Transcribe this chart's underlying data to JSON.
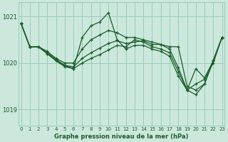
{
  "background_color": "#cce8dc",
  "grid_color": "#99ccbb",
  "line_color": "#1a5c2a",
  "marker_color": "#1a5c2a",
  "title": "Graphe pression niveau de la mer (hPa)",
  "ylim": [
    1018.65,
    1021.3
  ],
  "xlim": [
    -0.3,
    23.3
  ],
  "xticks": [
    0,
    1,
    2,
    3,
    4,
    5,
    6,
    7,
    8,
    9,
    10,
    11,
    12,
    13,
    14,
    15,
    16,
    17,
    18,
    19,
    20,
    21,
    22,
    23
  ],
  "yticks": [
    1019,
    1020,
    1021
  ],
  "series": [
    [
      1020.85,
      1020.35,
      1020.35,
      1020.25,
      1020.1,
      1020.0,
      1020.0,
      1020.3,
      1020.5,
      1020.6,
      1020.7,
      1020.65,
      1020.55,
      1020.55,
      1020.5,
      1020.45,
      1020.4,
      1020.35,
      1020.35,
      1019.5,
      1019.42,
      1019.55,
      1020.05,
      1020.55
    ],
    [
      1020.85,
      1020.35,
      1020.35,
      1020.2,
      1020.05,
      1019.92,
      1019.88,
      1020.55,
      1020.8,
      1020.88,
      1021.08,
      1020.5,
      1020.3,
      1020.38,
      1020.38,
      1020.3,
      1020.25,
      1020.15,
      1019.72,
      1019.42,
      1019.32,
      1019.55,
      1020.05,
      1020.55
    ],
    [
      1020.85,
      1020.35,
      1020.35,
      1020.22,
      1020.08,
      1019.95,
      1019.92,
      1020.1,
      1020.22,
      1020.32,
      1020.42,
      1020.48,
      1020.42,
      1020.45,
      1020.48,
      1020.4,
      1020.4,
      1020.3,
      1019.9,
      1019.42,
      1019.88,
      1019.68,
      1020.05,
      1020.55
    ],
    [
      1020.85,
      1020.35,
      1020.35,
      1020.2,
      1020.05,
      1019.95,
      1019.88,
      1020.0,
      1020.1,
      1020.18,
      1020.28,
      1020.38,
      1020.35,
      1020.5,
      1020.45,
      1020.35,
      1020.3,
      1020.22,
      1019.82,
      1019.42,
      1019.55,
      1019.65,
      1020.0,
      1020.55
    ]
  ]
}
